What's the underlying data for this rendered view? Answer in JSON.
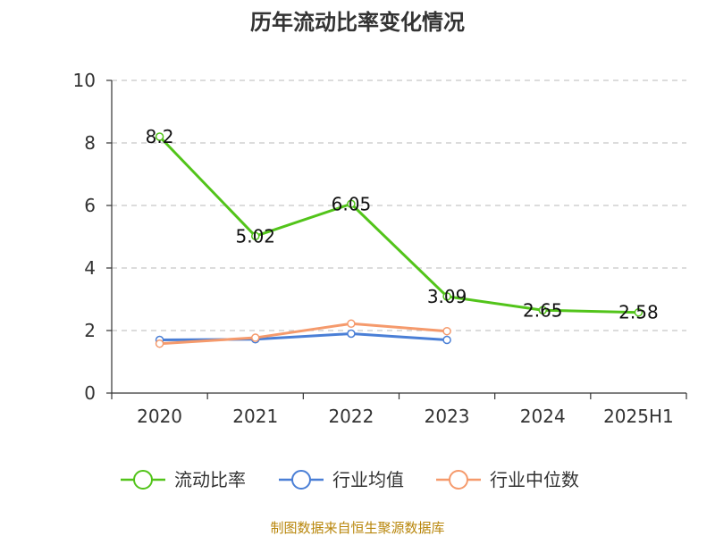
{
  "chart_data": {
    "type": "line",
    "title": "历年流动比率变化情况",
    "categories": [
      "2020",
      "2021",
      "2022",
      "2023",
      "2024",
      "2025H1"
    ],
    "ylim": [
      0,
      10
    ],
    "yticks": [
      0,
      2,
      4,
      6,
      8,
      10
    ],
    "grid": true,
    "legend_position": "bottom",
    "series": [
      {
        "name": "流动比率",
        "color": "#52c41a",
        "values": [
          8.2,
          5.02,
          6.05,
          3.09,
          2.65,
          2.58
        ],
        "labels": [
          "8.2",
          "5.02",
          "6.05",
          "3.09",
          "2.65",
          "2.58"
        ]
      },
      {
        "name": "行业均值",
        "color": "#4a7fd6",
        "values": [
          1.7,
          1.72,
          1.9,
          1.7,
          null,
          null
        ]
      },
      {
        "name": "行业中位数",
        "color": "#f59a6c",
        "values": [
          1.58,
          1.77,
          2.22,
          1.98,
          null,
          null
        ]
      }
    ]
  },
  "footer": {
    "source": "制图数据来自恒生聚源数据库"
  }
}
